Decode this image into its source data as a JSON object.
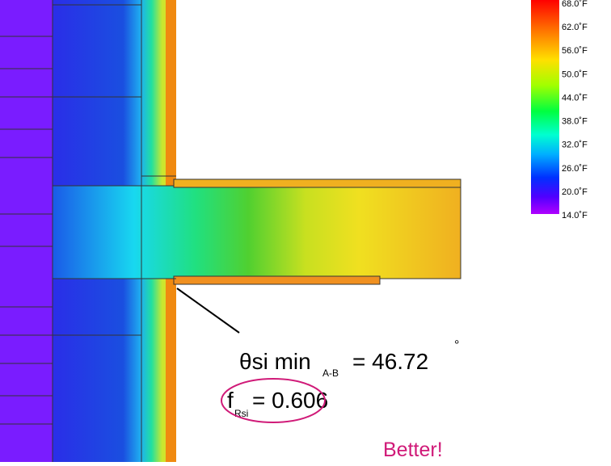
{
  "legend": {
    "labels": [
      "68.0˚F",
      "62.0˚F",
      "56.0˚F",
      "50.0˚F",
      "44.0˚F",
      "38.0˚F",
      "32.0˚F",
      "26.0˚F",
      "20.0˚F",
      "14.0˚F"
    ]
  },
  "annotation": {
    "theta": "θsi min",
    "theta_sub": "A-B",
    "theta_value": "= 46.72",
    "theta_unit": "°",
    "f": "f",
    "f_sub": "Rsi",
    "f_value": "= 0.606",
    "note": "Better!"
  }
}
